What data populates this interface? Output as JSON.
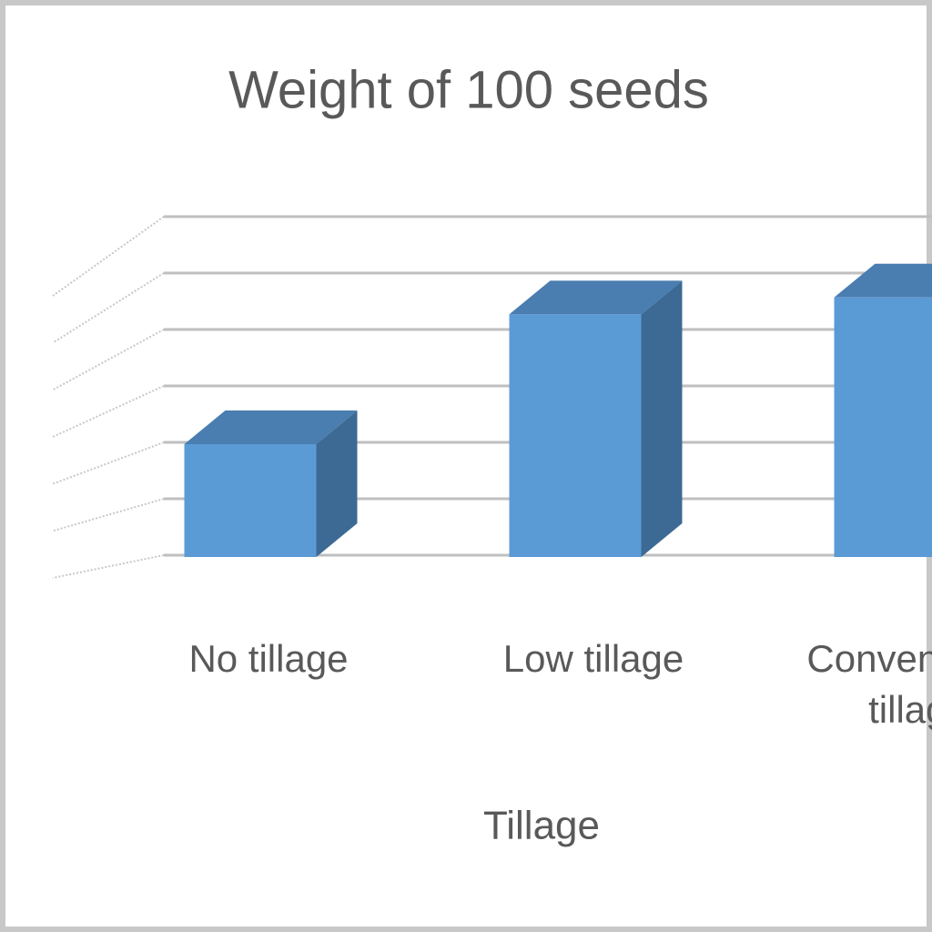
{
  "chart_data": {
    "type": "bar3d",
    "title": "Weight of 100 seeds",
    "x_label": "Tillage",
    "categories": [
      "No tillage",
      "Low tillage",
      "Conventional tillage"
    ],
    "values": [
      2,
      4.3,
      4.6
    ],
    "color": "#5b9bd5",
    "ylim": [
      0,
      6
    ],
    "yticks": [
      0,
      1,
      2,
      3,
      4,
      5,
      6
    ],
    "grid": true
  }
}
